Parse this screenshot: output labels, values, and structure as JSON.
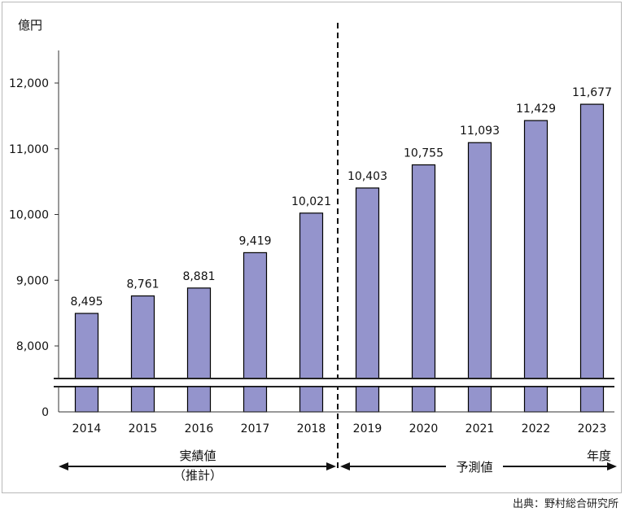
{
  "chart_data": {
    "type": "bar",
    "categories": [
      "2014",
      "2015",
      "2016",
      "2017",
      "2018",
      "2019",
      "2020",
      "2021",
      "2022",
      "2023"
    ],
    "values": [
      8495,
      8761,
      8881,
      9419,
      10021,
      10403,
      10755,
      11093,
      11429,
      11677
    ],
    "data_labels": [
      "8,495",
      "8,761",
      "8,881",
      "9,419",
      "10,021",
      "10,403",
      "10,755",
      "11,093",
      "11,429",
      "11,677"
    ],
    "y_unit": "億円",
    "x_unit": "年度",
    "yticks": [
      "0",
      "8,000",
      "9,000",
      "10,000",
      "11,000",
      "12,000"
    ],
    "ylim": [
      7500,
      12500
    ],
    "axis_break": true,
    "bar_color": "#9494cc",
    "actual_label": "実績値",
    "actual_sublabel": "（推計）",
    "forecast_label": "予測値",
    "source": "出典：野村総合研究所"
  }
}
